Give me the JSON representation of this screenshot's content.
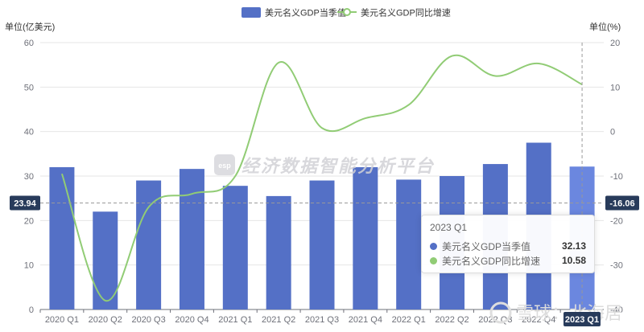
{
  "colors": {
    "bar": "#5470c6",
    "bar_highlight": "#6b87df",
    "line": "#91cc75",
    "pointer_bg": "#283b5b",
    "grid": "#e6e6e6"
  },
  "watermark": {
    "logo": "esp",
    "text": "经济数据智能分析平台",
    "corner": "雪球：北海居"
  },
  "pointer": {
    "left_value": "23.94",
    "right_value": "-16.06",
    "x_value": "2023 Q1"
  },
  "tooltip": {
    "title": "2023 Q1",
    "rows": [
      {
        "name": "美元名义GDP当季值",
        "value": "32.13",
        "color": "#5470c6"
      },
      {
        "name": "美元名义GDP同比增速",
        "value": "10.58",
        "color": "#91cc75"
      }
    ]
  },
  "chart_data": {
    "type": "bar",
    "categories": [
      "2020 Q1",
      "2020 Q2",
      "2020 Q3",
      "2020 Q4",
      "2021 Q1",
      "2021 Q2",
      "2021 Q3",
      "2021 Q4",
      "2022 Q1",
      "2022 Q2",
      "2022 Q3",
      "2022 Q4",
      "2023 Q1"
    ],
    "series": [
      {
        "name": "美元名义GDP当季值",
        "type": "bar",
        "axis": "left",
        "values": [
          32.0,
          22.0,
          29.0,
          31.6,
          27.8,
          25.5,
          29.0,
          32.0,
          29.2,
          30.0,
          32.7,
          37.5,
          32.13
        ]
      },
      {
        "name": "美元名义GDP同比增速",
        "type": "line",
        "axis": "right",
        "smooth": true,
        "values": [
          -9.5,
          -38.0,
          -17.0,
          -14.0,
          -10.0,
          15.5,
          0.8,
          3.0,
          6.0,
          17.0,
          12.5,
          15.3,
          10.58
        ]
      }
    ],
    "left_axis": {
      "label": "单位(亿美元)",
      "min": 0,
      "max": 60,
      "ticks": [
        0,
        10,
        20,
        30,
        40,
        50,
        60
      ]
    },
    "right_axis": {
      "label": "单位(%)",
      "min": -40,
      "max": 20,
      "ticks": [
        -40,
        -30,
        -20,
        -10,
        0,
        10,
        20
      ]
    },
    "legend_position": "top-center",
    "grid": "horizontal"
  }
}
